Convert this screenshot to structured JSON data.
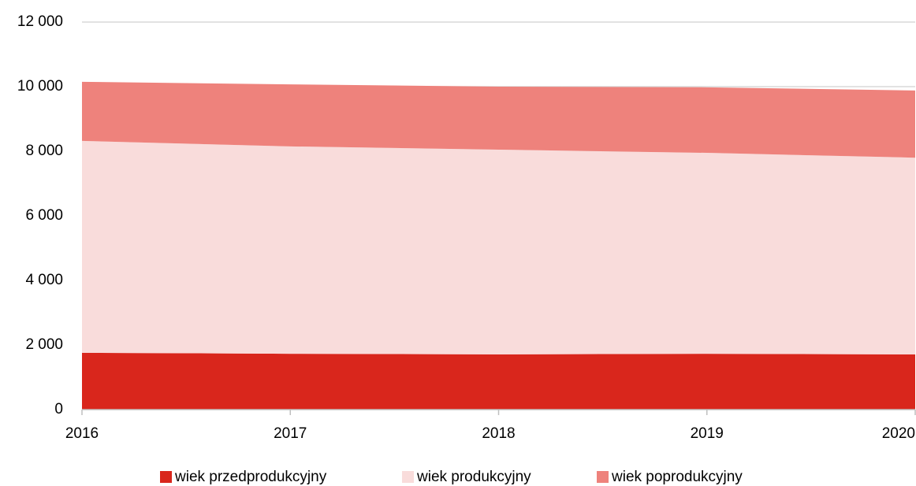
{
  "chart_data": {
    "type": "stacked_area",
    "x": [
      2016,
      2017,
      2018,
      2019,
      2020
    ],
    "xlim": [
      2016,
      2020
    ],
    "xticks": [
      2016,
      2017,
      2018,
      2019,
      2020
    ],
    "ylim": [
      0,
      12000
    ],
    "yticks": [
      0,
      {
        "value": 2000,
        "label": "2 000"
      },
      {
        "value": 4000,
        "label": "4 000"
      },
      {
        "value": 6000,
        "label": "6 000"
      },
      {
        "value": 8000,
        "label": "8 000"
      },
      {
        "value": 10000,
        "label": "10 000"
      },
      {
        "value": 12000,
        "label": "12 000"
      }
    ],
    "grid": true,
    "legend": "bottom",
    "series": [
      {
        "name": "wiek przedprodukcyjny",
        "color": "#d9261c",
        "values": [
          1760,
          1730,
          1710,
          1730,
          1710
        ]
      },
      {
        "name": "wiek produkcyjny",
        "color": "#f9dcdb",
        "values": [
          6560,
          6420,
          6340,
          6220,
          6090
        ]
      },
      {
        "name": "wiek poprodukcyjny",
        "color": "#ee827c",
        "values": [
          1830,
          1920,
          1950,
          2030,
          2080
        ]
      }
    ]
  }
}
